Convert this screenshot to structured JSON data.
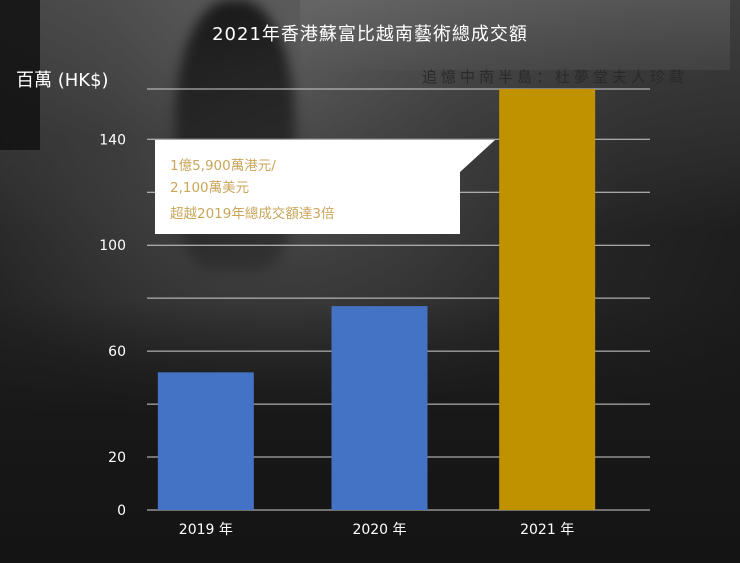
{
  "title": "2021年香港蘇富比越南藝術總成交額",
  "y_unit": "百萬 (HK$)",
  "background_text": "追憶中南半島：杜夢堂夫人珍藏",
  "annotation": {
    "line1": "1億5,900萬港元/",
    "line2": "2,100萬美元",
    "line3": "超越2019年總成交額達3倍"
  },
  "colors": {
    "bar_default": "#4472c4",
    "bar_highlight": "#c19200",
    "grid": "#cfcfcf",
    "annotation_text": "#c9a65a"
  },
  "chart_data": {
    "type": "bar",
    "categories": [
      "2019 年",
      "2020 年",
      "2021 年"
    ],
    "values": [
      52,
      77,
      159
    ],
    "highlight_index": 2,
    "ylabel": "百萬 (HK$)",
    "ylim": [
      0,
      159
    ],
    "y_tick_labels": [
      "0",
      "20",
      "60",
      "100",
      "140"
    ],
    "y_tick_values": [
      0,
      20,
      60,
      100,
      140
    ],
    "grid": true
  }
}
